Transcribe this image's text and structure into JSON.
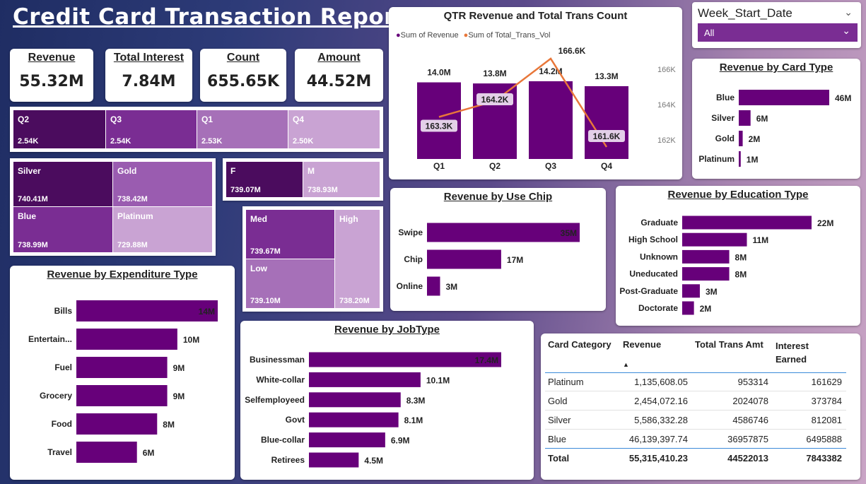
{
  "report_title": "Credit Card Transaction Report",
  "kpis": [
    {
      "label": "Revenue",
      "value": "55.32M"
    },
    {
      "label": "Total Interest",
      "value": "7.84M"
    },
    {
      "label": "Count",
      "value": "655.65K"
    },
    {
      "label": "Amount",
      "value": "44.52M"
    }
  ],
  "slicer": {
    "title": "Week_Start_Date",
    "selected": "All"
  },
  "colors": {
    "dark": "#4b0c5e",
    "mid": "#7a2d93",
    "light": "#b58bc4",
    "lighter": "#c9a3d3",
    "bar": "#67007a",
    "line": "#e8773a"
  },
  "treemap_quarter": [
    {
      "label": "Q2",
      "value": "2.54K"
    },
    {
      "label": "Q3",
      "value": "2.54K"
    },
    {
      "label": "Q1",
      "value": "2.53K"
    },
    {
      "label": "Q4",
      "value": "2.50K"
    }
  ],
  "treemap_card": [
    {
      "label": "Silver",
      "value": "740.41M"
    },
    {
      "label": "Gold",
      "value": "738.42M"
    },
    {
      "label": "Blue",
      "value": "738.99M"
    },
    {
      "label": "Platinum",
      "value": "729.88M"
    }
  ],
  "treemap_gender": [
    {
      "label": "F",
      "value": "739.07M"
    },
    {
      "label": "M",
      "value": "738.93M"
    }
  ],
  "treemap_income": [
    {
      "label": "Med",
      "value": "739.67M"
    },
    {
      "label": "High",
      "value": "738.20M"
    },
    {
      "label": "Low",
      "value": "739.10M"
    }
  ],
  "chart_data": [
    {
      "id": "qtr",
      "type": "bar",
      "title": "QTR Revenue and Total Trans Count",
      "categories": [
        "Q1",
        "Q2",
        "Q3",
        "Q4"
      ],
      "series": [
        {
          "name": "Sum of Revenue",
          "values": [
            14.0,
            13.8,
            14.2,
            13.3
          ],
          "labels": [
            "14.0M",
            "13.8M",
            "14.2M",
            "13.3M"
          ]
        },
        {
          "name": "Sum of Total_Trans_Vol",
          "values": [
            163.3,
            164.2,
            166.6,
            161.6
          ],
          "labels": [
            "163.3K",
            "164.2K",
            "166.6K",
            "161.6K"
          ]
        }
      ],
      "y2_ticks": [
        "166K",
        "164K",
        "162K"
      ],
      "legend": "top-left"
    },
    {
      "id": "card",
      "type": "bar",
      "title": "Revenue by Card Type",
      "categories": [
        "Blue",
        "Silver",
        "Gold",
        "Platinum"
      ],
      "values": [
        46,
        6,
        2,
        1
      ],
      "labels": [
        "46M",
        "6M",
        "2M",
        "1M"
      ]
    },
    {
      "id": "chip",
      "type": "bar",
      "title": "Revenue by Use Chip",
      "categories": [
        "Swipe",
        "Chip",
        "Online"
      ],
      "values": [
        35,
        17,
        3
      ],
      "labels": [
        "35M",
        "17M",
        "3M"
      ]
    },
    {
      "id": "edu",
      "type": "bar",
      "title": "Revenue by Education Type",
      "categories": [
        "Graduate",
        "High School",
        "Unknown",
        "Uneducated",
        "Post-Graduate",
        "Doctorate"
      ],
      "values": [
        22,
        11,
        8,
        8,
        3,
        2
      ],
      "labels": [
        "22M",
        "11M",
        "8M",
        "8M",
        "3M",
        "2M"
      ]
    },
    {
      "id": "exp",
      "type": "bar",
      "title": "Revenue by Expenditure Type",
      "categories": [
        "Bills",
        "Entertain...",
        "Fuel",
        "Grocery",
        "Food",
        "Travel"
      ],
      "values": [
        14,
        10,
        9,
        9,
        8,
        6
      ],
      "labels": [
        "14M",
        "10M",
        "9M",
        "9M",
        "8M",
        "6M"
      ]
    },
    {
      "id": "job",
      "type": "bar",
      "title": "Revenue by JobType",
      "categories": [
        "Businessman",
        "White-collar",
        "Selfemployeed",
        "Govt",
        "Blue-collar",
        "Retirees"
      ],
      "values": [
        17.4,
        10.1,
        8.3,
        8.1,
        6.9,
        4.5
      ],
      "labels": [
        "17.4M",
        "10.1M",
        "8.3M",
        "8.1M",
        "6.9M",
        "4.5M"
      ]
    },
    {
      "id": "table",
      "type": "table",
      "columns": [
        "Card Category",
        "Revenue",
        "Total Trans Amt",
        "Interest Earned"
      ],
      "rows": [
        [
          "Platinum",
          "1,135,608.05",
          "953314",
          "161629"
        ],
        [
          "Gold",
          "2,454,072.16",
          "2024078",
          "373784"
        ],
        [
          "Silver",
          "5,586,332.28",
          "4586746",
          "812081"
        ],
        [
          "Blue",
          "46,139,397.74",
          "36957875",
          "6495888"
        ]
      ],
      "total": [
        "Total",
        "55,315,410.23",
        "44522013",
        "7843382"
      ]
    }
  ]
}
